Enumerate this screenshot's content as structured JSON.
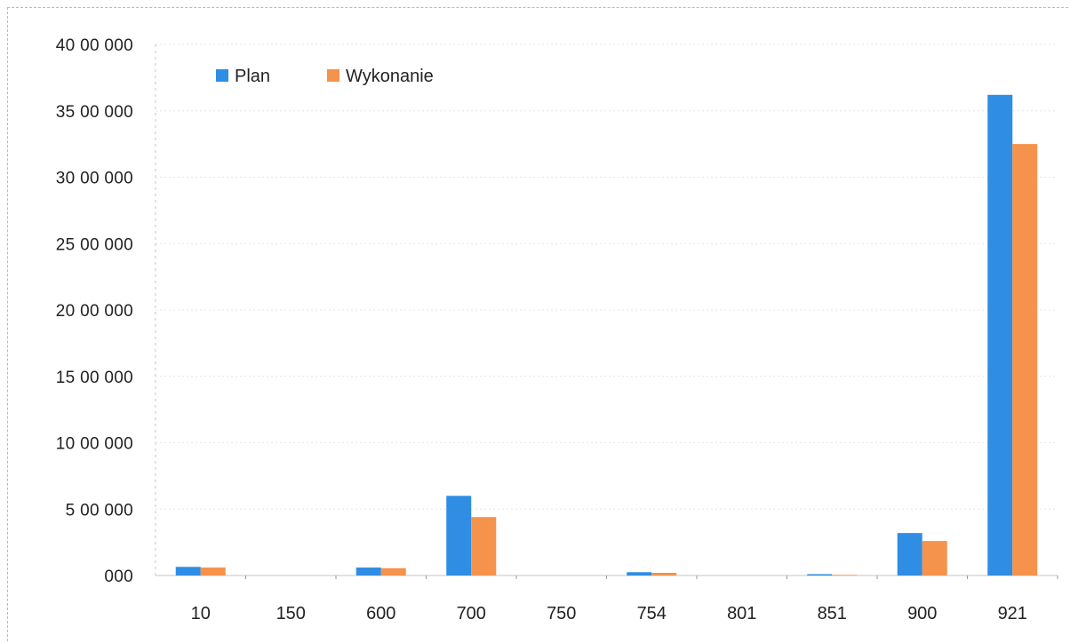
{
  "chart_data": {
    "type": "bar",
    "title": "",
    "xlabel": "",
    "ylabel": "",
    "categories": [
      "10",
      "150",
      "600",
      "700",
      "750",
      "754",
      "801",
      "851",
      "900",
      "921"
    ],
    "series": [
      {
        "name": "Plan",
        "color": "#2f8de4",
        "values": [
          65000,
          0,
          60000,
          600000,
          0,
          25000,
          0,
          10000,
          320000,
          3620000
        ]
      },
      {
        "name": "Wykonanie",
        "color": "#f5924b",
        "values": [
          60000,
          0,
          55000,
          440000,
          0,
          20000,
          0,
          5000,
          260000,
          3250000
        ]
      }
    ],
    "ylim": [
      0,
      4000000
    ],
    "ytick_labels": [
      "000",
      "5 00 000",
      "10 00 000",
      "15 00 000",
      "20 00 000",
      "25 00 000",
      "30 00 000",
      "35 00 000",
      "40 00 000"
    ],
    "grid": true,
    "legend": "top-left"
  }
}
